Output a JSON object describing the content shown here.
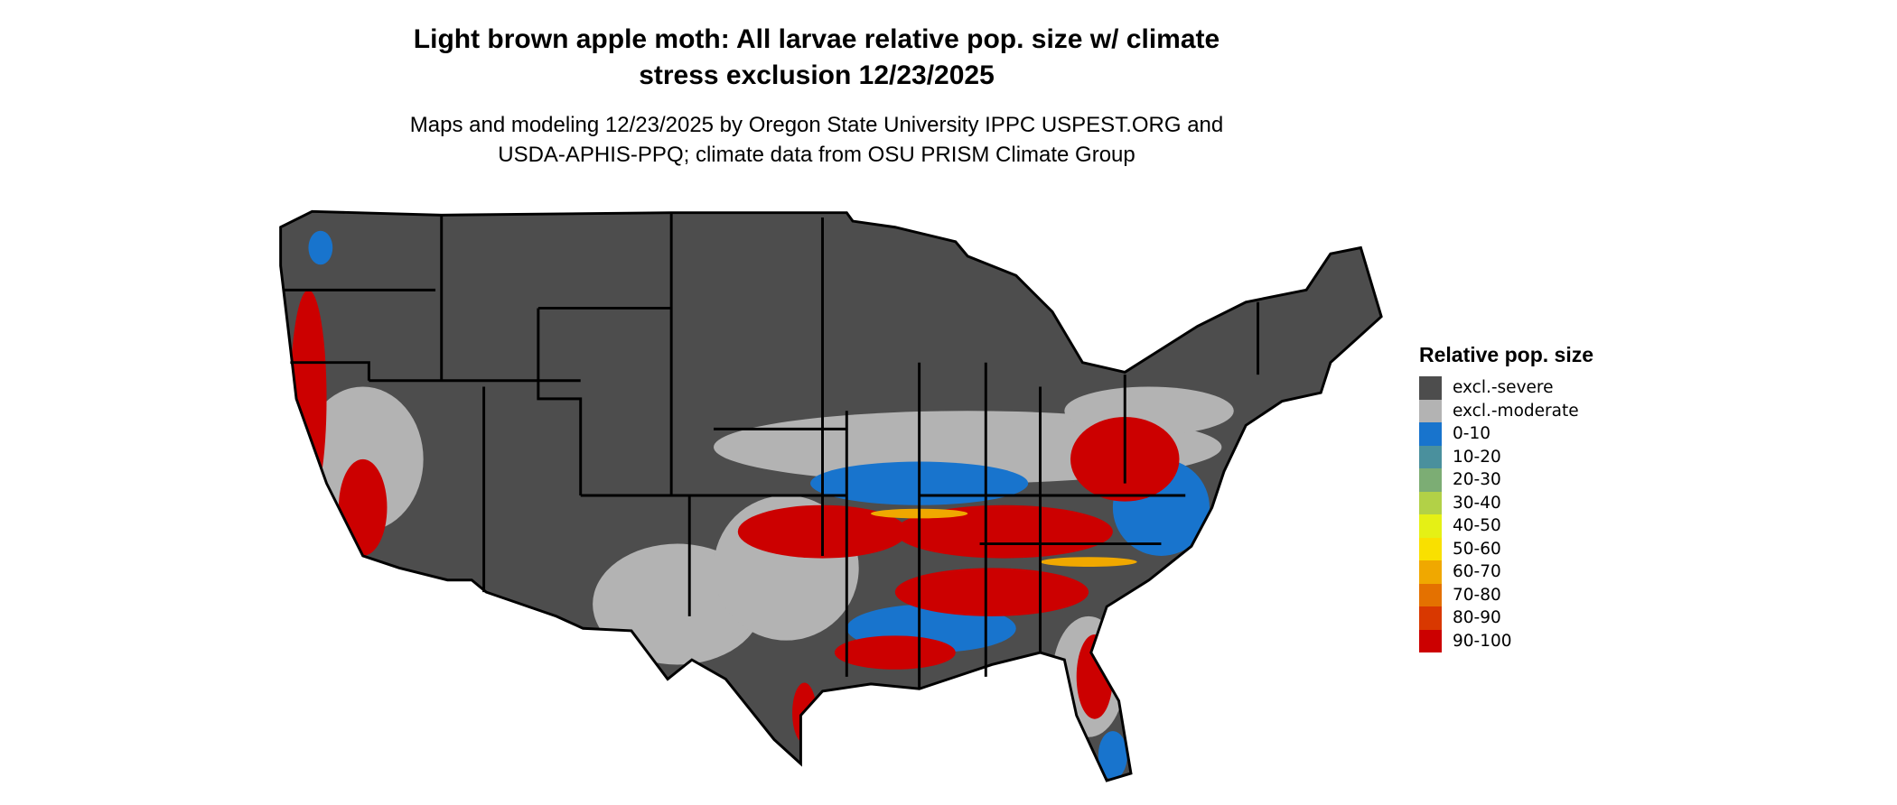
{
  "title": "Light brown apple moth: All larvae relative pop. size w/ climate stress exclusion 12/23/2025",
  "title_line1": "Light brown apple moth: All larvae relative pop. size w/ climate",
  "title_line2": "stress exclusion 12/23/2025",
  "subtitle_line1": "Maps and modeling 12/23/2025 by Oregon State University IPPC USPEST.ORG and",
  "subtitle_line2": "USDA-APHIS-PPQ; climate data from OSU PRISM Climate Group",
  "legend": {
    "title": "Relative pop. size",
    "items": [
      {
        "label": "excl.-severe",
        "color": "#4d4d4d"
      },
      {
        "label": "excl.-moderate",
        "color": "#b3b3b3"
      },
      {
        "label": "0-10",
        "color": "#1874cd"
      },
      {
        "label": "10-20",
        "color": "#4a909d"
      },
      {
        "label": "20-30",
        "color": "#7cad74"
      },
      {
        "label": "30-40",
        "color": "#b2d147"
      },
      {
        "label": "40-50",
        "color": "#e5f015"
      },
      {
        "label": "50-60",
        "color": "#f9e000"
      },
      {
        "label": "60-70",
        "color": "#f0a800"
      },
      {
        "label": "70-80",
        "color": "#e47100"
      },
      {
        "label": "80-90",
        "color": "#d93800"
      },
      {
        "label": "90-100",
        "color": "#cc0000"
      }
    ]
  }
}
